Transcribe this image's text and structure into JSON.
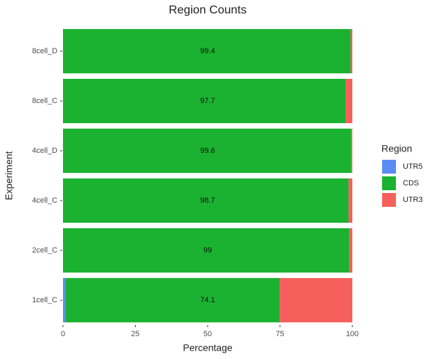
{
  "chart_data": {
    "type": "stacked-bar",
    "orientation": "horizontal",
    "title": "Region Counts",
    "x_label": "Percentage",
    "y_label": "Experiment",
    "categories": [
      "1cell_C",
      "2cell_C",
      "4cell_C",
      "4cell_D",
      "8cell_C",
      "8cell_D"
    ],
    "series": [
      {
        "name": "UTR5",
        "color": "#5b8cf5",
        "values": [
          0.8,
          0,
          0,
          0,
          0,
          0
        ]
      },
      {
        "name": "CDS",
        "color": "#1cb231",
        "values": [
          74.1,
          99,
          98.7,
          99.6,
          97.7,
          99.4
        ]
      },
      {
        "name": "UTR3",
        "color": "#f5605c",
        "values": [
          25.1,
          1.0,
          1.3,
          0.4,
          2.3,
          0.6
        ]
      }
    ],
    "labeled_series": "CDS",
    "xlim": [
      0,
      100
    ],
    "xticks": [
      0,
      25,
      50,
      75,
      100
    ],
    "legend_title": "Region",
    "legend_position": "right",
    "grid": false
  }
}
